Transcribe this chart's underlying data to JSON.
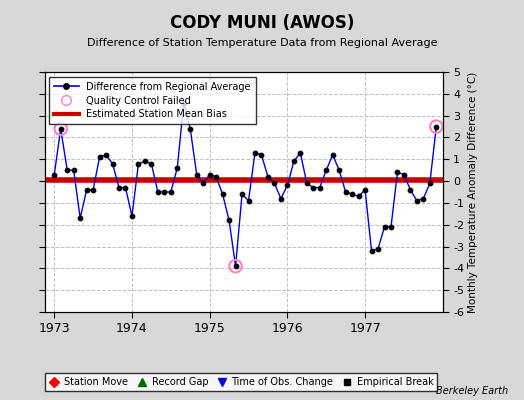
{
  "title": "CODY MUNI (AWOS)",
  "subtitle": "Difference of Station Temperature Data from Regional Average",
  "ylabel_right": "Monthly Temperature Anomaly Difference (°C)",
  "bias_line": 0.05,
  "ylim": [
    -6,
    5
  ],
  "yticks": [
    -6,
    -5,
    -4,
    -3,
    -2,
    -1,
    0,
    1,
    2,
    3,
    4,
    5
  ],
  "background_color": "#d8d8d8",
  "plot_bg_color": "#ffffff",
  "credit": "Berkeley Earth",
  "months": [
    1,
    2,
    3,
    4,
    5,
    6,
    7,
    8,
    9,
    10,
    11,
    12,
    13,
    14,
    15,
    16,
    17,
    18,
    19,
    20,
    21,
    22,
    23,
    24,
    25,
    26,
    27,
    28,
    29,
    30,
    31,
    32,
    33,
    34,
    35,
    36,
    37,
    38,
    39,
    40,
    41,
    42,
    43,
    44,
    45,
    46,
    47,
    48,
    49,
    50,
    51,
    52,
    53,
    54,
    55,
    56,
    57,
    58,
    59,
    60
  ],
  "values": [
    0.3,
    2.4,
    0.5,
    0.5,
    -1.7,
    -0.4,
    -0.4,
    1.1,
    1.2,
    0.8,
    -0.3,
    -0.3,
    -1.6,
    0.8,
    0.9,
    0.8,
    -0.5,
    -0.5,
    -0.5,
    0.6,
    3.6,
    2.4,
    0.3,
    -0.1,
    0.3,
    0.2,
    -0.6,
    -1.8,
    -3.9,
    -0.6,
    -0.9,
    1.3,
    1.2,
    0.2,
    -0.1,
    -0.8,
    -0.2,
    0.9,
    1.3,
    -0.1,
    -0.3,
    -0.3,
    0.5,
    1.2,
    0.5,
    -0.5,
    -0.6,
    -0.7,
    -0.4,
    -3.2,
    -3.1,
    -2.1,
    -2.1,
    0.4,
    0.3,
    -0.4,
    -0.9,
    -0.8,
    -0.1,
    2.5
  ],
  "qc_failed_indices": [
    1,
    28,
    59
  ],
  "line_color": "#0000dd",
  "dot_color": "#000000",
  "qc_color": "#ff80c0",
  "bias_color": "#cc0000",
  "grid_color": "#c0c0c0",
  "xtick_positions": [
    1,
    13,
    25,
    37,
    49
  ],
  "xtick_labels": [
    "1973",
    "1974",
    "1975",
    "1976",
    "1977"
  ]
}
